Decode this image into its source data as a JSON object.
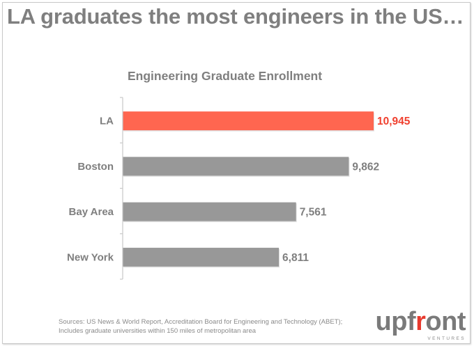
{
  "slide": {
    "headline": "LA graduates the most engineers in the US…",
    "source_line_1": "Sources: US News & World Report, Accreditation Board for Engineering and Technology (ABET);",
    "source_line_2": "Includes graduate universities within 150 miles of metropolitan area",
    "logo": {
      "pre": "upf",
      "accent": "r",
      "post": "ont",
      "subtitle": "VENTURES"
    }
  },
  "colors": {
    "highlight": "#ff6650",
    "highlight_text": "#f0402f",
    "bar": "#989898",
    "text": "#7f7f7f",
    "axis": "#c8c8c8"
  },
  "chart_data": {
    "type": "bar",
    "orientation": "horizontal",
    "title": "Engineering Graduate Enrollment",
    "xlabel": "",
    "ylabel": "",
    "categories": [
      "LA",
      "Boston",
      "Bay Area",
      "New York"
    ],
    "values": [
      10945,
      9862,
      7561,
      6811
    ],
    "value_labels": [
      "10,945",
      "9,862",
      "7,561",
      "6,811"
    ],
    "highlight": [
      true,
      false,
      false,
      false
    ],
    "xlim": [
      0,
      10945
    ],
    "grid": false,
    "legend": "none"
  }
}
